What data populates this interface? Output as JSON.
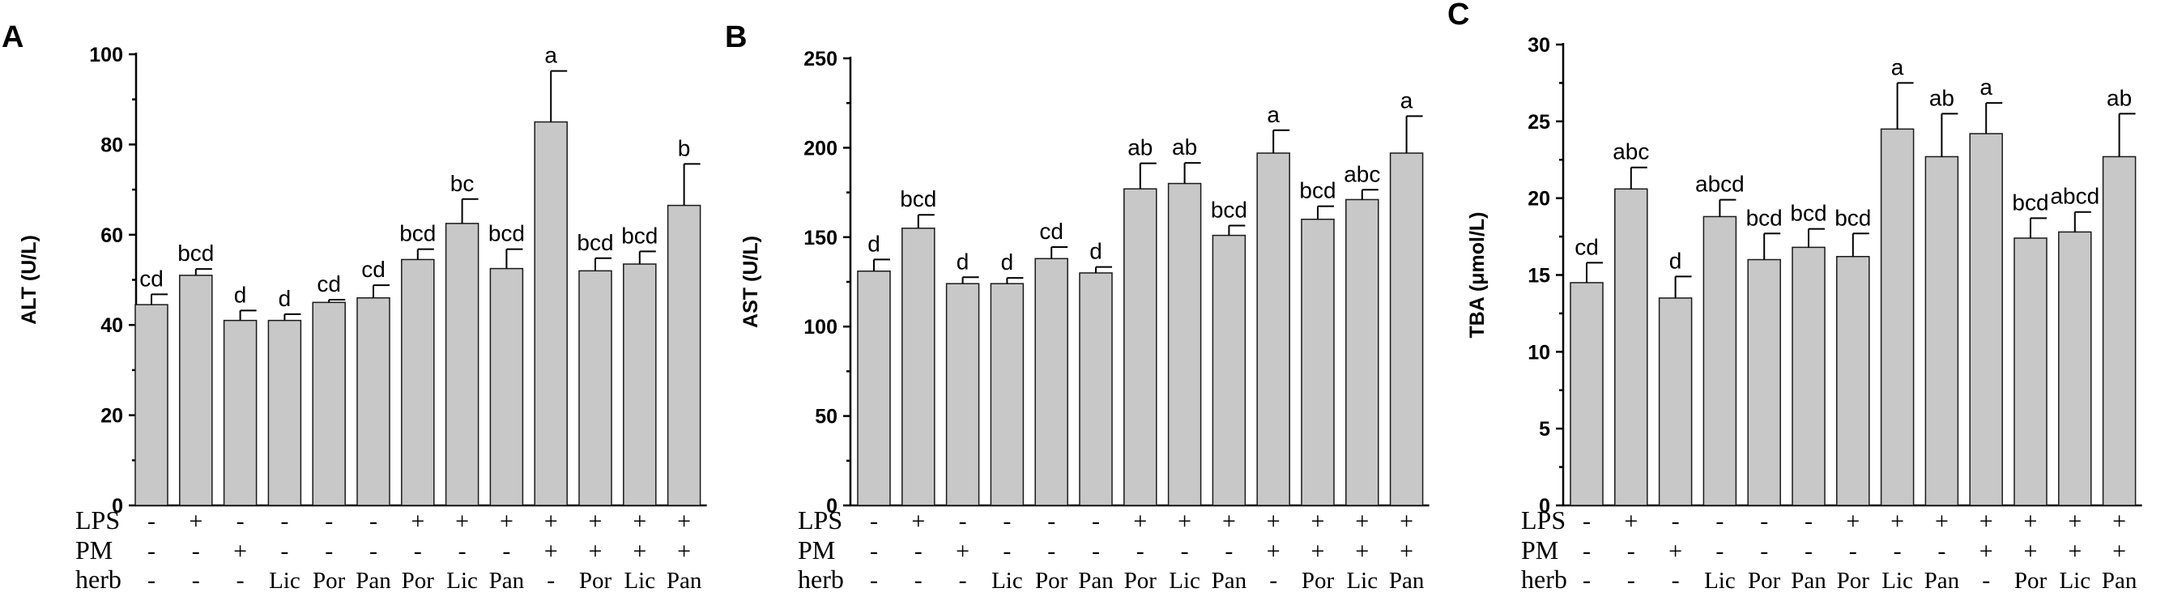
{
  "figure": {
    "row_labels": [
      "LPS",
      "PM",
      "herb"
    ],
    "conditions": {
      "LPS": [
        "-",
        "+",
        "-",
        "-",
        "-",
        "-",
        "+",
        "+",
        "+",
        "+",
        "+",
        "+",
        "+"
      ],
      "PM": [
        "-",
        "-",
        "+",
        "-",
        "-",
        "-",
        "-",
        "-",
        "-",
        "+",
        "+",
        "+",
        "+"
      ],
      "herb": [
        "-",
        "-",
        "-",
        "Lic",
        "Por",
        "Pan",
        "Por",
        "Lic",
        "Pan",
        "-",
        "Por",
        "Lic",
        "Pan"
      ]
    }
  },
  "chart_data": [
    {
      "type": "bar",
      "panel": "A",
      "ylabel": "ALT (U/L)",
      "ylim": [
        0,
        100
      ],
      "yticks": [
        0,
        20,
        40,
        60,
        80,
        100
      ],
      "values": [
        44.5,
        51,
        41,
        41,
        45,
        46,
        54.5,
        62.5,
        52.5,
        85,
        52,
        53.5,
        66.5
      ],
      "errors": [
        2.3,
        1.4,
        2.2,
        1.4,
        0.6,
        2.8,
        2.3,
        5.4,
        4.3,
        11.3,
        2.8,
        2.8,
        9.2
      ],
      "labels": [
        "cd",
        "bcd",
        "d",
        "d",
        "cd",
        "cd",
        "bcd",
        "bc",
        "bcd",
        "a",
        "bcd",
        "bcd",
        "b"
      ]
    },
    {
      "type": "bar",
      "panel": "B",
      "ylabel": "AST (U/L)",
      "ylim": [
        0,
        250
      ],
      "yticks": [
        0,
        50,
        100,
        150,
        200,
        250
      ],
      "values": [
        131,
        155,
        124,
        124,
        138,
        130,
        177,
        180,
        151,
        197,
        160,
        171,
        197
      ],
      "errors": [
        6.5,
        7.5,
        3.6,
        3.2,
        6.5,
        3.3,
        14.3,
        11.5,
        5.5,
        12.8,
        7.3,
        5.5,
        20.7
      ],
      "labels": [
        "d",
        "bcd",
        "d",
        "d",
        "cd",
        "d",
        "ab",
        "ab",
        "bcd",
        "a",
        "bcd",
        "abc",
        "a"
      ]
    },
    {
      "type": "bar",
      "panel": "C",
      "ylabel": "TBA (μmol/L)",
      "ylim": [
        0,
        30
      ],
      "yticks": [
        0,
        5,
        10,
        15,
        20,
        25,
        30
      ],
      "values": [
        14.5,
        20.6,
        13.5,
        18.8,
        16,
        16.8,
        16.2,
        24.5,
        22.7,
        24.2,
        17.4,
        17.8,
        22.7
      ],
      "errors": [
        1.3,
        1.4,
        1.4,
        1.1,
        1.7,
        1.2,
        1.5,
        3.0,
        2.8,
        2.0,
        1.3,
        1.3,
        2.8
      ],
      "labels": [
        "cd",
        "abc",
        "d",
        "abcd",
        "bcd",
        "bcd",
        "bcd",
        "a",
        "ab",
        "a",
        "bcd",
        "abcd",
        "ab"
      ]
    }
  ]
}
